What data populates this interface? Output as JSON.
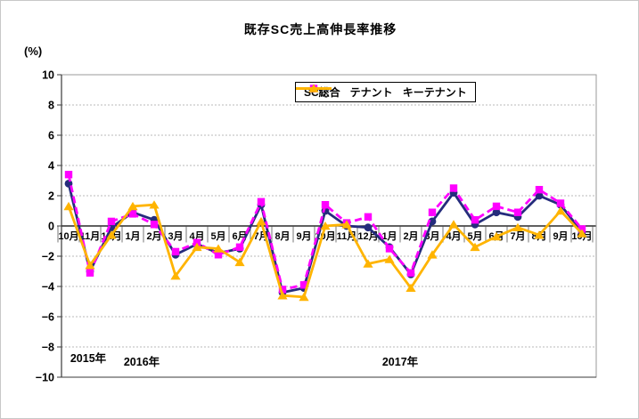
{
  "figure": {
    "title": "既存SC売上高伸長率推移"
  },
  "chart_data": {
    "type": "line",
    "title": "既存SC売上高伸長率推移",
    "xlabel": "",
    "ylabel": "(%)",
    "ylim": [
      -10,
      10
    ],
    "yticks": [
      10,
      8,
      6,
      4,
      2,
      0,
      -2,
      -4,
      -6,
      -8,
      -10
    ],
    "grid": true,
    "legend_position": "top-center",
    "categories": [
      "10月",
      "11月",
      "12月",
      "1月",
      "2月",
      "3月",
      "4月",
      "5月",
      "6月",
      "7月",
      "8月",
      "9月",
      "10月",
      "11月",
      "12月",
      "1月",
      "2月",
      "3月",
      "4月",
      "5月",
      "6月",
      "7月",
      "8月",
      "9月",
      "10月"
    ],
    "year_labels": [
      "2015年",
      "2016年",
      "2017年"
    ],
    "series": [
      {
        "name": "SC総合",
        "color": "#252C7C",
        "line_style": "solid",
        "marker": "circle",
        "values": [
          2.8,
          -3.0,
          -0.1,
          0.9,
          0.4,
          -1.9,
          -1.2,
          -1.8,
          -1.5,
          1.4,
          -4.4,
          -4.1,
          1.0,
          0.0,
          -0.1,
          -1.4,
          -3.2,
          0.3,
          2.2,
          0.1,
          0.9,
          0.6,
          2.0,
          1.4,
          -0.4
        ]
      },
      {
        "name": "テナント",
        "color": "#FF00FF",
        "line_style": "dashed",
        "marker": "square",
        "values": [
          3.4,
          -3.1,
          0.3,
          0.8,
          0.1,
          -1.7,
          -1.1,
          -1.9,
          -1.4,
          1.6,
          -4.2,
          -3.9,
          1.4,
          0.2,
          0.6,
          -1.5,
          -3.1,
          0.9,
          2.5,
          0.4,
          1.3,
          0.9,
          2.4,
          1.5,
          -0.2
        ]
      },
      {
        "name": "キーテナント",
        "color": "#FFB400",
        "line_style": "solid",
        "marker": "triangle",
        "values": [
          1.3,
          -2.6,
          -0.6,
          1.3,
          1.4,
          -3.3,
          -1.4,
          -1.5,
          -2.4,
          0.3,
          -4.6,
          -4.7,
          0.0,
          0.1,
          -2.5,
          -2.2,
          -4.1,
          -1.9,
          0.1,
          -1.4,
          -0.7,
          -0.1,
          -0.6,
          1.0,
          -0.5
        ]
      }
    ]
  }
}
